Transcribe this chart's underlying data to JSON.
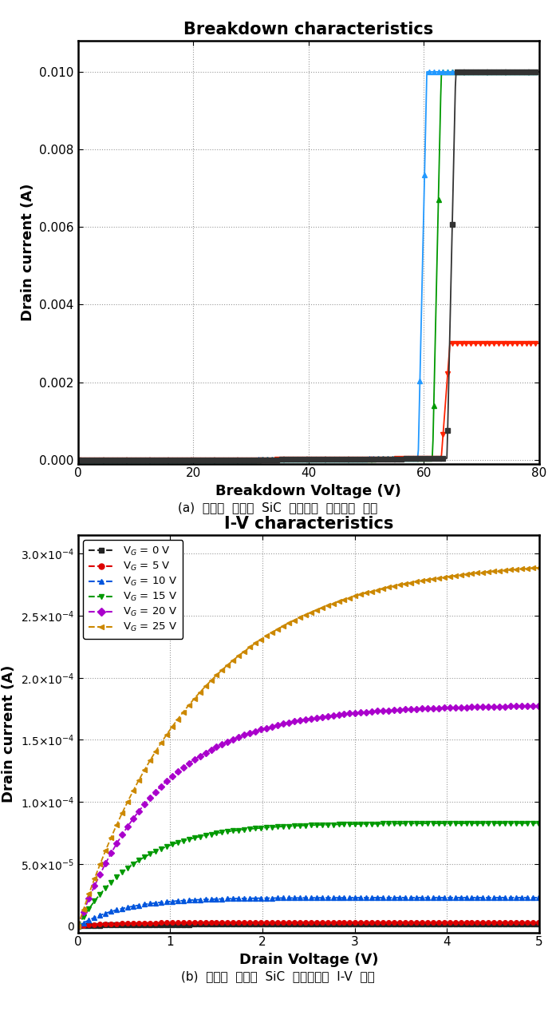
{
  "fig_width": 6.97,
  "fig_height": 12.76,
  "fig_dpi": 100,
  "background_color": "#ffffff",
  "plot1": {
    "title": "Breakdown characteristics",
    "title_fontsize": 15,
    "title_fontweight": "bold",
    "xlabel": "Breakdown Voltage (V)",
    "ylabel": "Drain current (A)",
    "xlabel_fontsize": 13,
    "ylabel_fontsize": 13,
    "xlabel_fontweight": "bold",
    "ylabel_fontweight": "bold",
    "xlim": [
      0,
      80
    ],
    "ylim": [
      -0.0001,
      0.0108
    ],
    "xticks": [
      0,
      20,
      40,
      60,
      80
    ],
    "yticks": [
      0.0,
      0.002,
      0.004,
      0.006,
      0.008,
      0.01
    ],
    "grid": true,
    "caption": "(a)  제작된  저전압  SiC  수평소자  항복전압  특성",
    "series": [
      {
        "color": "#009900",
        "marker": "^",
        "markersize": 4,
        "bv": 63.0,
        "Imax": 0.01,
        "pre_scale": 4.5e-05,
        "exp": 3.5
      },
      {
        "color": "#2299ff",
        "marker": "^",
        "markersize": 5,
        "bv": 60.5,
        "Imax": 0.01,
        "pre_scale": 4.5e-05,
        "exp": 3.5
      },
      {
        "color": "#ff2200",
        "marker": "v",
        "markersize": 4,
        "bv": 64.5,
        "Imax": 0.003,
        "pre_scale": 4e-05,
        "exp": 3.5
      },
      {
        "color": "#333333",
        "marker": "s",
        "markersize": 4,
        "bv": 65.5,
        "Imax": 0.01,
        "pre_scale": 3.8e-05,
        "exp": 3.5
      }
    ]
  },
  "plot2": {
    "title": "I-V characteristics",
    "title_fontsize": 15,
    "title_fontweight": "bold",
    "xlabel": "Drain Voltage (V)",
    "ylabel": "Drain current (A)",
    "xlabel_fontsize": 13,
    "ylabel_fontsize": 13,
    "xlabel_fontweight": "bold",
    "ylabel_fontweight": "bold",
    "xlim": [
      0,
      5
    ],
    "ylim": [
      -5e-06,
      0.000315
    ],
    "xticks": [
      0,
      1,
      2,
      3,
      4,
      5
    ],
    "yticks": [
      0,
      5e-05,
      0.0001,
      0.00015,
      0.0002,
      0.00025,
      0.0003
    ],
    "ytick_labels": [
      "0",
      "5.0×10$^{-5}$",
      "1.0×10$^{-4}$",
      "1.5×10$^{-4}$",
      "2.0×10$^{-4}$",
      "2.5×10$^{-4}$",
      "3.0×10$^{-4}$"
    ],
    "grid": true,
    "caption": "(b)  제작된  저전압  SiC  수평소자의  I-V  특성",
    "series": [
      {
        "label": "V$_G$ = 0 V",
        "color": "#222222",
        "marker": "s",
        "Isat": 1.5e-06,
        "V0": 0.35
      },
      {
        "label": "V$_G$ = 5 V",
        "color": "#dd0000",
        "marker": "o",
        "Isat": 3e-06,
        "V0": 0.35
      },
      {
        "label": "V$_G$ = 10 V",
        "color": "#0055dd",
        "marker": "^",
        "Isat": 2.3e-05,
        "V0": 0.5
      },
      {
        "label": "V$_G$ = 15 V",
        "color": "#009900",
        "marker": "v",
        "Isat": 8.3e-05,
        "V0": 0.65
      },
      {
        "label": "V$_G$ = 20 V",
        "color": "#aa00cc",
        "marker": "D",
        "Isat": 0.000178,
        "V0": 0.9
      },
      {
        "label": "V$_G$ = 25 V",
        "color": "#cc8800",
        "marker": "<",
        "Isat": 0.000295,
        "V0": 1.3
      }
    ]
  }
}
